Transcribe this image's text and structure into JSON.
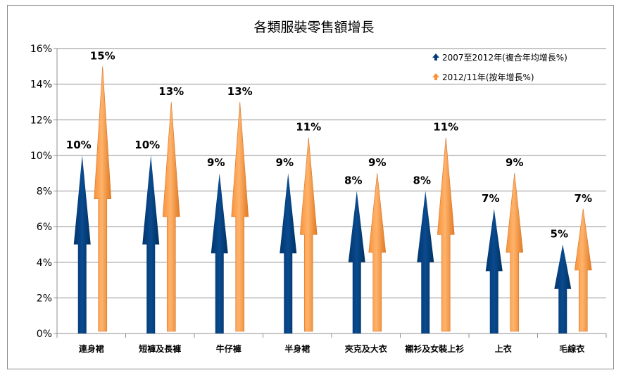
{
  "chart_data": {
    "type": "bar",
    "title": "各類服裝零售額增長",
    "categories": [
      "連身裙",
      "短褲及長褲",
      "牛仔褲",
      "半身裙",
      "夾克及大衣",
      "襯衫及女裝上衫",
      "上衣",
      "毛線衣"
    ],
    "series": [
      {
        "name": "2007至2012年(複合年均增長%)",
        "values": [
          10,
          10,
          9,
          9,
          8,
          8,
          7,
          5
        ],
        "labels": [
          "10%",
          "10%",
          "9%",
          "9%",
          "8%",
          "8%",
          "7%",
          "5%"
        ],
        "color": "#003b7a"
      },
      {
        "name": "2012/11年(按年增長%)",
        "values": [
          15,
          13,
          13,
          11,
          9,
          11,
          9,
          7
        ],
        "labels": [
          "15%",
          "13%",
          "13%",
          "11%",
          "9%",
          "11%",
          "9%",
          "7%"
        ],
        "color": "#f7923a"
      }
    ],
    "ylim": [
      0,
      16
    ],
    "yticks": [
      "0%",
      "2%",
      "4%",
      "6%",
      "8%",
      "10%",
      "12%",
      "14%",
      "16%"
    ],
    "grid": true,
    "legend_position": "top-right",
    "mark": "arrow"
  }
}
